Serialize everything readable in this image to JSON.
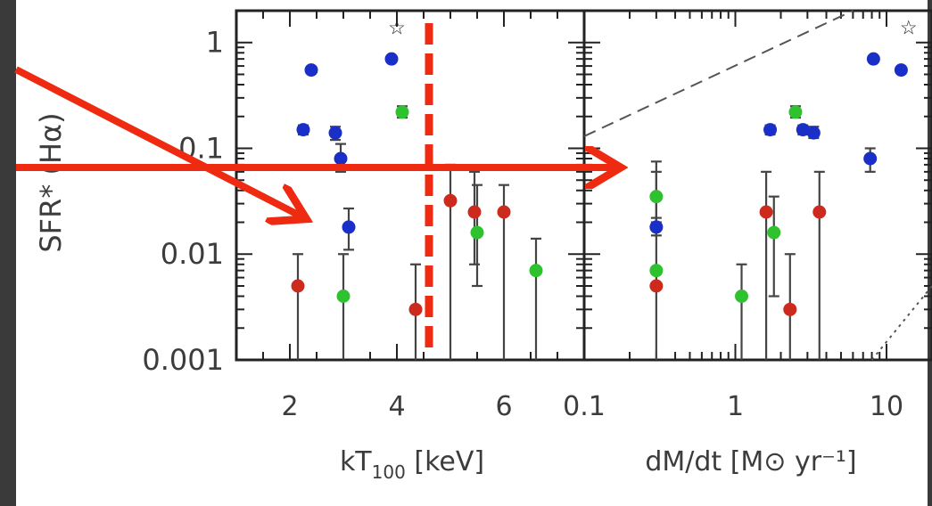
{
  "chart_data": [
    {
      "type": "scatter",
      "ylabel": "SFR* (Hα)",
      "yscale": "log",
      "ylim": [
        0.001,
        2
      ],
      "yticks": [
        {
          "value": 0.001,
          "label": "0.001"
        },
        {
          "value": 0.01,
          "label": "0.01"
        },
        {
          "value": 0.1,
          "label": "0.1"
        },
        {
          "value": 1,
          "label": "1"
        }
      ],
      "xlabel": "kT100 [keV]",
      "xscale": "linear",
      "xlim": [
        1,
        7.5
      ],
      "xticks": [
        {
          "value": 2,
          "label": "2"
        },
        {
          "value": 4,
          "label": "4"
        },
        {
          "value": 6,
          "label": "6"
        }
      ],
      "series": [
        {
          "color": "#1a2ec8",
          "points": [
            {
              "x": 2.25,
              "y": 0.15,
              "err": [
                0.135,
                0.165
              ]
            },
            {
              "x": 2.4,
              "y": 0.55
            },
            {
              "x": 2.85,
              "y": 0.14,
              "err": [
                0.12,
                0.16
              ]
            },
            {
              "x": 2.95,
              "y": 0.08,
              "err": [
                0.06,
                0.11
              ]
            },
            {
              "x": 3.1,
              "y": 0.018,
              "err": [
                0.011,
                0.027
              ]
            },
            {
              "x": 3.9,
              "y": 0.7
            }
          ]
        },
        {
          "color": "#2fc22f",
          "points": [
            {
              "x": 3.0,
              "y": 0.004,
              "err": [
                0.001,
                0.01
              ]
            },
            {
              "x": 4.1,
              "y": 0.22,
              "err": [
                0.195,
                0.25
              ]
            },
            {
              "x": 5.5,
              "y": 0.016,
              "err": [
                0.005,
                0.045
              ]
            },
            {
              "x": 6.6,
              "y": 0.007,
              "err": [
                0.001,
                0.014
              ]
            }
          ]
        },
        {
          "color": "#cc2a1c",
          "points": [
            {
              "x": 2.15,
              "y": 0.005,
              "err": [
                0.001,
                0.01
              ]
            },
            {
              "x": 4.35,
              "y": 0.003,
              "err": [
                0.001,
                0.008
              ]
            },
            {
              "x": 5.0,
              "y": 0.032,
              "err": [
                0.001,
                0.07
              ]
            },
            {
              "x": 5.45,
              "y": 0.025,
              "err": [
                0.008,
                0.06
              ]
            },
            {
              "x": 6.0,
              "y": 0.025,
              "err": [
                0.001,
                0.045
              ]
            }
          ]
        }
      ],
      "markers": [
        {
          "x": 4.0,
          "y": 1.4,
          "symbol": "☆"
        }
      ]
    },
    {
      "type": "scatter",
      "xlabel": "dM/dt [M⊙ yr⁻¹]",
      "xscale": "log",
      "yscale": "log",
      "ylim": [
        0.001,
        2
      ],
      "xlim": [
        0.1,
        20
      ],
      "xticks": [
        {
          "value": 0.1,
          "label": "0.1"
        },
        {
          "value": 1,
          "label": "1"
        },
        {
          "value": 10,
          "label": "10"
        }
      ],
      "series": [
        {
          "color": "#1a2ec8",
          "points": [
            {
              "x": 0.3,
              "y": 0.018,
              "err": [
                0.015,
                0.022
              ]
            },
            {
              "x": 1.7,
              "y": 0.15,
              "err": [
                0.135,
                0.165
              ]
            },
            {
              "x": 2.8,
              "y": 0.15,
              "err": [
                0.135,
                0.165
              ]
            },
            {
              "x": 3.3,
              "y": 0.14,
              "err": [
                0.125,
                0.16
              ]
            },
            {
              "x": 7.8,
              "y": 0.08,
              "err": [
                0.06,
                0.1
              ]
            },
            {
              "x": 8.2,
              "y": 0.7
            },
            {
              "x": 12.5,
              "y": 0.55
            }
          ]
        },
        {
          "color": "#2fc22f",
          "points": [
            {
              "x": 0.3,
              "y": 0.035,
              "err": [
                0.02,
                0.06
              ]
            },
            {
              "x": 0.3,
              "y": 0.007,
              "err": [
                0.0065,
                0.0075
              ]
            },
            {
              "x": 1.1,
              "y": 0.004,
              "err": [
                0.001,
                0.008
              ]
            },
            {
              "x": 1.8,
              "y": 0.016,
              "err": [
                0.004,
                0.035
              ]
            },
            {
              "x": 2.5,
              "y": 0.22,
              "err": [
                0.195,
                0.25
              ]
            }
          ]
        },
        {
          "color": "#cc2a1c",
          "points": [
            {
              "x": 0.3,
              "y": 0.005,
              "err": [
                0.001,
                0.075
              ]
            },
            {
              "x": 1.6,
              "y": 0.025,
              "err": [
                0.001,
                0.06
              ]
            },
            {
              "x": 2.3,
              "y": 0.003,
              "err": [
                0.001,
                0.01
              ]
            },
            {
              "x": 3.6,
              "y": 0.025,
              "err": [
                0.001,
                0.06
              ]
            }
          ]
        }
      ],
      "markers": [
        {
          "x": 14.0,
          "y": 1.4,
          "symbol": "☆"
        }
      ],
      "reference_lines": [
        {
          "style": "dashed",
          "from": [
            0.1,
            0.13
          ],
          "to": [
            6,
            2
          ]
        },
        {
          "style": "dotted",
          "from": [
            8,
            0.001
          ],
          "to": [
            20,
            0.005
          ]
        }
      ]
    }
  ],
  "annotations": {
    "color": "#ee2a10",
    "vertical_cut": {
      "x": 4.6,
      "style": "dashed"
    }
  }
}
